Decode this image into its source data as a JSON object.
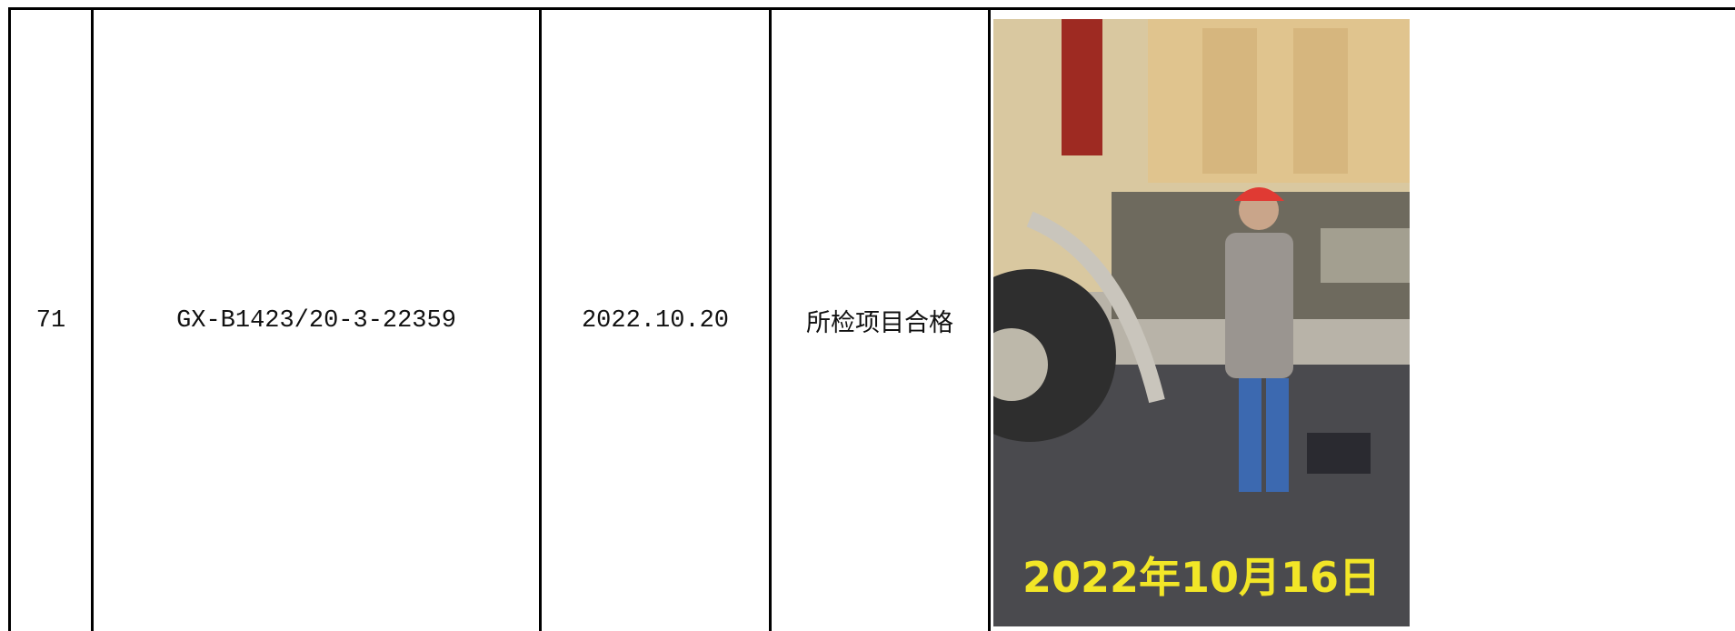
{
  "table": {
    "rows": [
      [
        "71",
        "GX-B1423/20-3-22359",
        "2022.10.20",
        "所检项目合格"
      ]
    ]
  },
  "photo": {
    "caption": "2022年10月16日"
  }
}
